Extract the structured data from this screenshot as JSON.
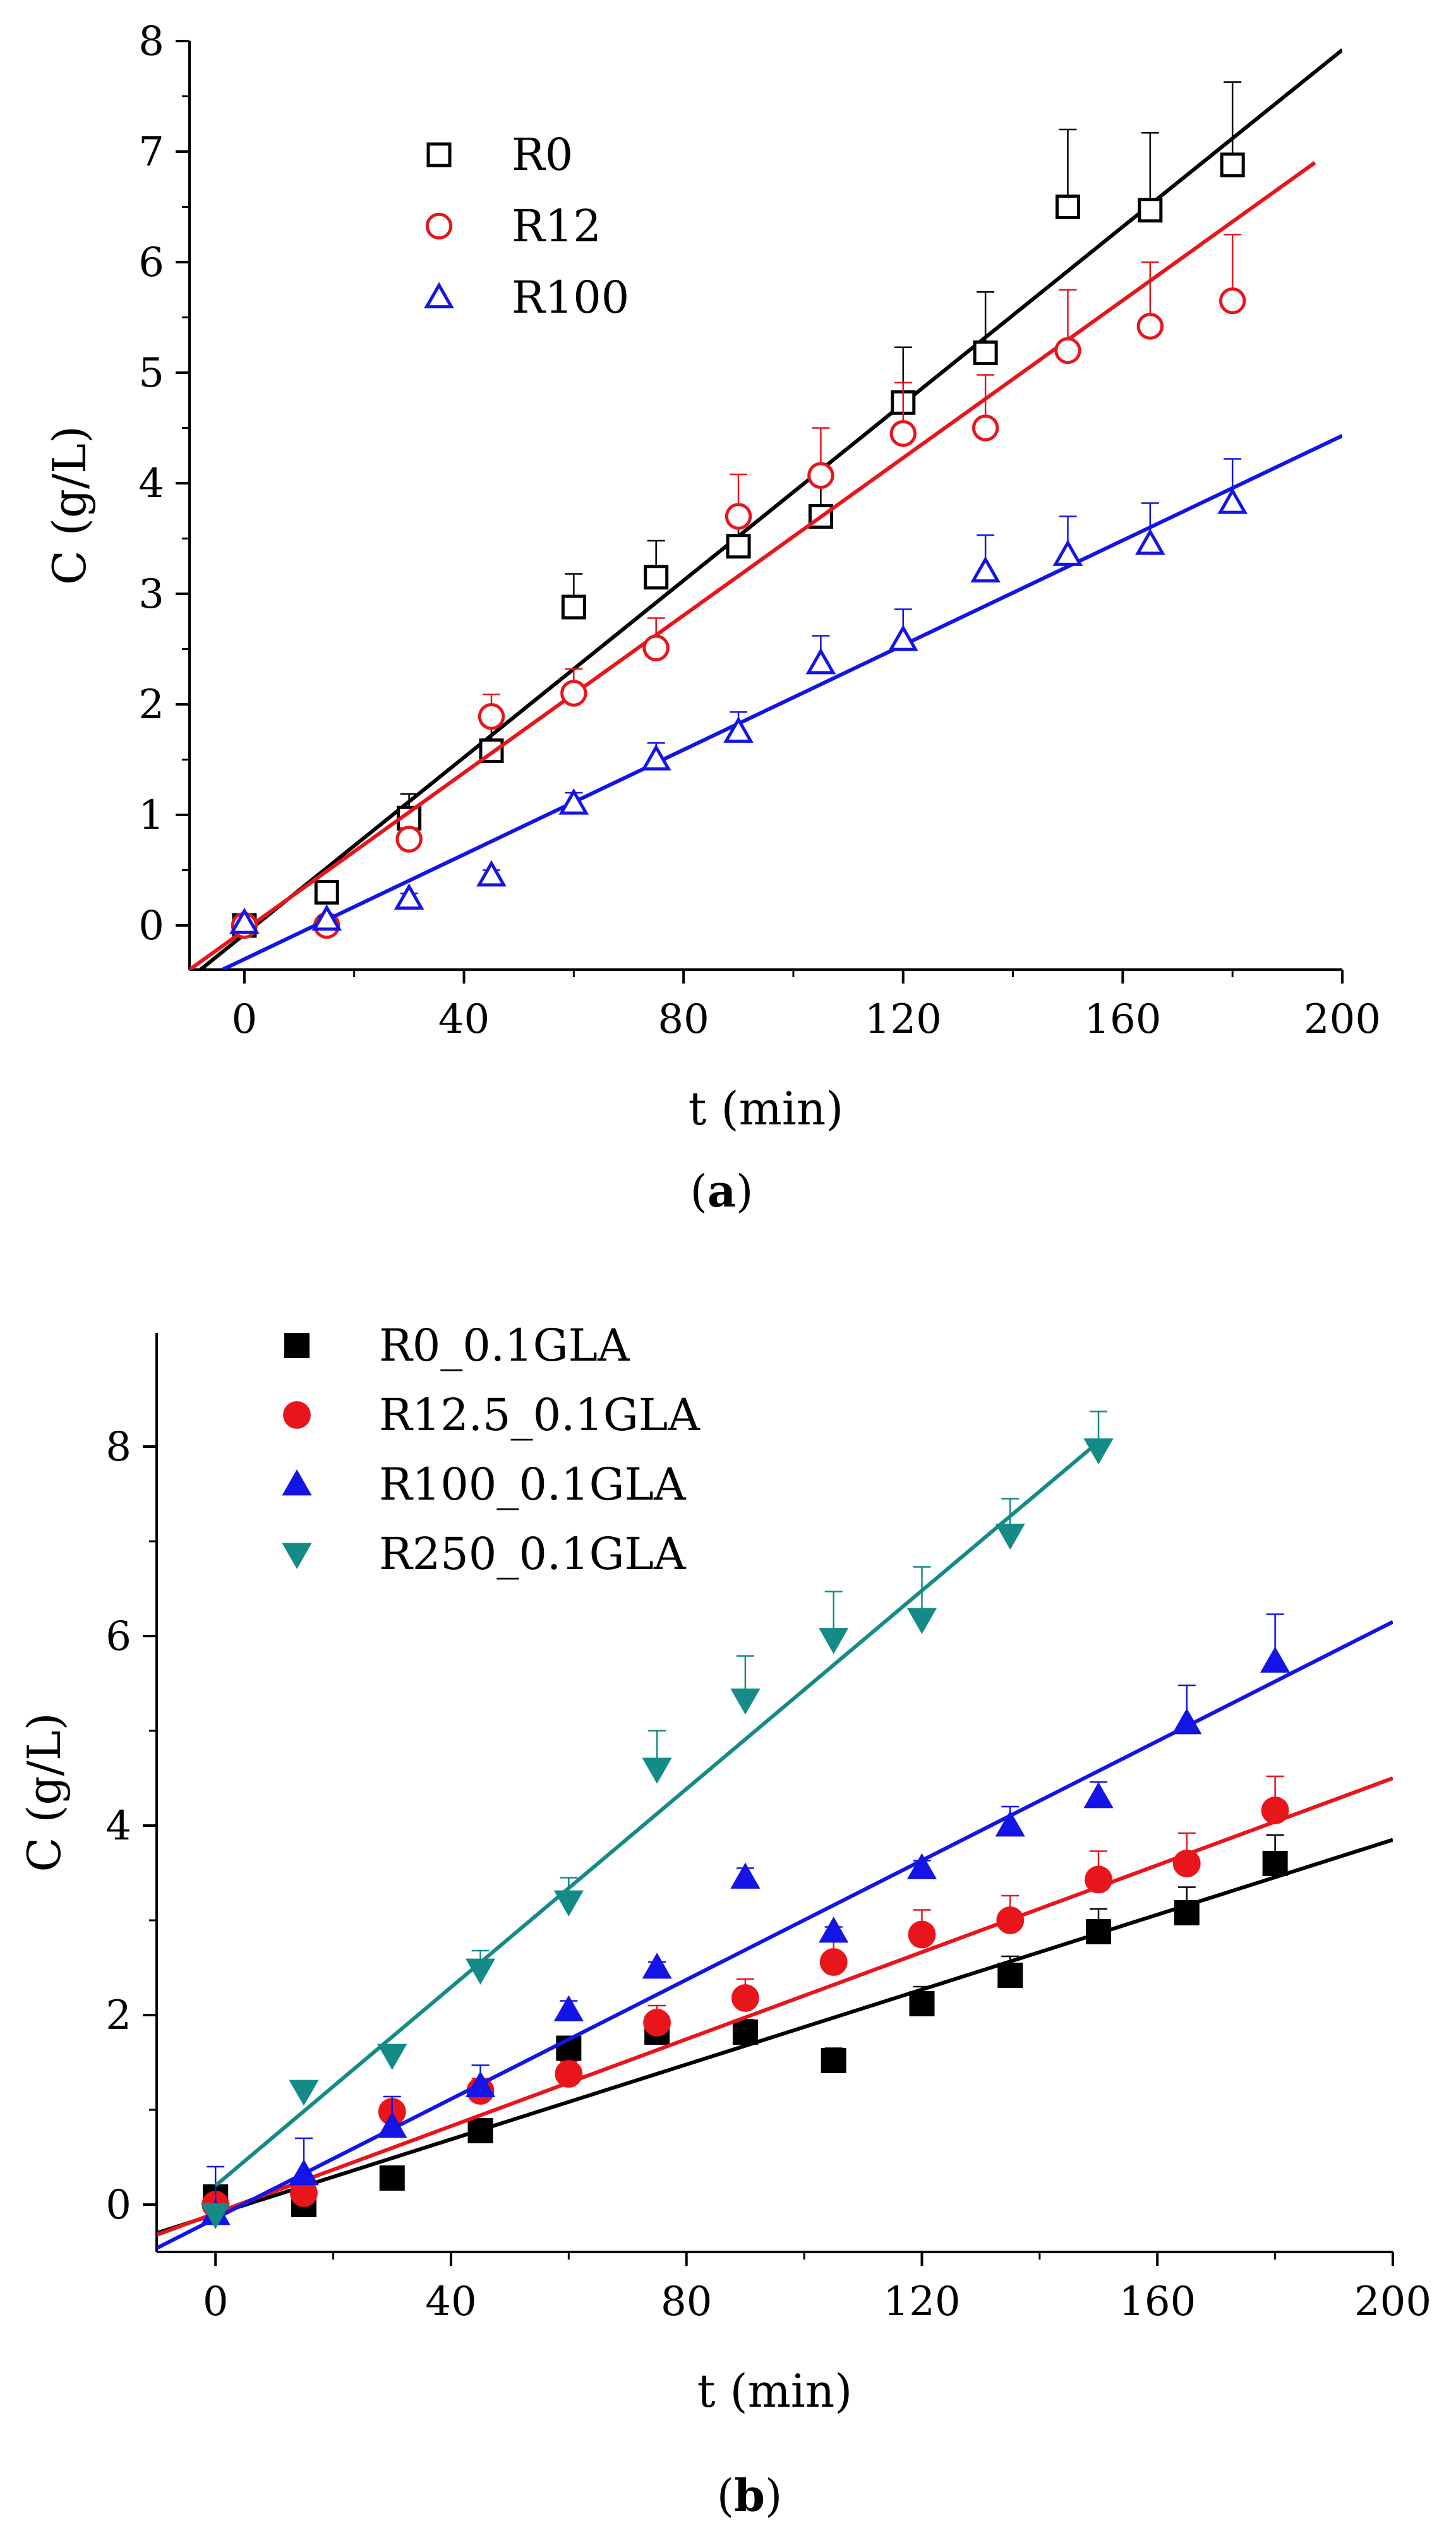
{
  "chart_data": [
    {
      "type": "scatter",
      "panel_label": "a",
      "xlabel": "t (min)",
      "ylabel": "C (g/L)",
      "xlim": [
        -10,
        200
      ],
      "ylim": [
        -0.4,
        8
      ],
      "x_ticks": [
        0,
        40,
        80,
        120,
        160,
        200
      ],
      "y_ticks": [
        0,
        1,
        2,
        3,
        4,
        5,
        6,
        7,
        8
      ],
      "x_tick_labels": [
        "0",
        "40",
        "80",
        "120",
        "160",
        "200"
      ],
      "y_tick_labels": [
        "0",
        "1",
        "2",
        "3",
        "4",
        "5",
        "6",
        "7",
        "8"
      ],
      "legend_position": "top-left",
      "series": [
        {
          "name": "R0",
          "marker": "square-open",
          "color": "#000000",
          "x": [
            0,
            15,
            30,
            45,
            60,
            75,
            90,
            105,
            120,
            135,
            150,
            165,
            180
          ],
          "y": [
            0.0,
            0.3,
            0.97,
            1.58,
            2.88,
            3.15,
            3.43,
            3.7,
            4.73,
            5.18,
            6.5,
            6.47,
            6.88
          ],
          "err": [
            0.0,
            0.05,
            0.22,
            0.3,
            0.3,
            0.33,
            0.35,
            0.4,
            0.5,
            0.55,
            0.7,
            0.7,
            0.75
          ],
          "fit": {
            "x": [
              -8,
              200
            ],
            "y": [
              -0.4,
              7.92
            ]
          }
        },
        {
          "name": "R12",
          "marker": "circle-open",
          "color": "#e8151b",
          "x": [
            0,
            15,
            30,
            45,
            60,
            75,
            90,
            105,
            120,
            135,
            150,
            165,
            180
          ],
          "y": [
            0.0,
            0.0,
            0.78,
            1.89,
            2.1,
            2.51,
            3.7,
            4.07,
            4.45,
            4.5,
            5.2,
            5.42,
            5.65
          ],
          "err": [
            0.0,
            0.0,
            0.1,
            0.2,
            0.22,
            0.27,
            0.38,
            0.43,
            0.46,
            0.48,
            0.55,
            0.58,
            0.6
          ],
          "fit": {
            "x": [
              -10,
              195
            ],
            "y": [
              -0.4,
              6.9
            ]
          }
        },
        {
          "name": "R100",
          "marker": "triangle-open",
          "color": "#1414e6",
          "x": [
            0,
            15,
            30,
            45,
            60,
            75,
            90,
            105,
            120,
            135,
            150,
            165,
            180
          ],
          "y": [
            0.02,
            0.05,
            0.24,
            0.45,
            1.1,
            1.5,
            1.75,
            2.37,
            2.58,
            3.2,
            3.35,
            3.45,
            3.82
          ],
          "err": [
            0.0,
            0.03,
            0.05,
            0.05,
            0.1,
            0.15,
            0.18,
            0.25,
            0.28,
            0.33,
            0.35,
            0.37,
            0.4
          ],
          "fit": {
            "x": [
              -4,
              200
            ],
            "y": [
              -0.4,
              4.43
            ]
          }
        }
      ]
    },
    {
      "type": "scatter",
      "panel_label": "b",
      "xlabel": "t (min)",
      "ylabel": "C (g/L)",
      "xlim": [
        -10,
        200
      ],
      "ylim": [
        -0.5,
        9.2
      ],
      "x_ticks": [
        0,
        40,
        80,
        120,
        160,
        200
      ],
      "y_ticks": [
        0,
        2,
        4,
        6,
        8
      ],
      "x_tick_labels": [
        "0",
        "40",
        "80",
        "120",
        "160",
        "200"
      ],
      "y_tick_labels": [
        "0",
        "2",
        "4",
        "6",
        "8"
      ],
      "legend_position": "top-left",
      "series": [
        {
          "name": "R0_0.1GLA",
          "marker": "square-filled",
          "color": "#000000",
          "x": [
            0,
            15,
            30,
            45,
            60,
            75,
            90,
            105,
            120,
            135,
            150,
            165,
            180
          ],
          "y": [
            0.08,
            0.0,
            0.28,
            0.78,
            1.65,
            1.82,
            1.82,
            1.52,
            2.12,
            2.42,
            2.88,
            3.08,
            3.6
          ],
          "err": [
            0.0,
            0.0,
            0.0,
            0.05,
            0.1,
            0.1,
            0.13,
            0.13,
            0.18,
            0.2,
            0.24,
            0.27,
            0.3
          ],
          "fit": {
            "x": [
              -10,
              200
            ],
            "y": [
              -0.3,
              3.85
            ]
          }
        },
        {
          "name": "R12.5_0.1GLA",
          "marker": "circle-filled",
          "color": "#e8151b",
          "x": [
            0,
            15,
            30,
            45,
            60,
            75,
            90,
            105,
            120,
            135,
            150,
            165,
            180
          ],
          "y": [
            0.0,
            0.12,
            0.98,
            1.2,
            1.38,
            1.92,
            2.18,
            2.56,
            2.85,
            3.0,
            3.43,
            3.6,
            4.16
          ],
          "err": [
            0.0,
            0.0,
            0.1,
            0.13,
            0.13,
            0.18,
            0.2,
            0.24,
            0.26,
            0.26,
            0.3,
            0.32,
            0.36
          ],
          "fit": {
            "x": [
              -10,
              200
            ],
            "y": [
              -0.32,
              4.5
            ]
          }
        },
        {
          "name": "R100_0.1GLA",
          "marker": "triangle-up-filled",
          "color": "#1414e6",
          "x": [
            0,
            15,
            30,
            45,
            60,
            75,
            90,
            105,
            120,
            135,
            150,
            165,
            180
          ],
          "y": [
            -0.1,
            0.32,
            0.82,
            1.25,
            2.05,
            2.5,
            3.45,
            2.88,
            3.55,
            4.0,
            4.3,
            5.08,
            5.73
          ],
          "err": [
            0.5,
            0.38,
            0.32,
            0.22,
            0.1,
            0.06,
            0.1,
            0.05,
            0.08,
            0.2,
            0.16,
            0.4,
            0.5
          ],
          "fit": {
            "x": [
              -10,
              200
            ],
            "y": [
              -0.46,
              6.15
            ]
          }
        },
        {
          "name": "R250_0.1GLA",
          "marker": "triangle-down-filled",
          "color": "#148b87",
          "x": [
            0,
            15,
            30,
            45,
            60,
            75,
            90,
            105,
            120,
            135,
            150
          ],
          "y": [
            -0.1,
            1.2,
            1.58,
            2.48,
            3.2,
            4.6,
            5.33,
            5.97,
            6.18,
            7.07,
            7.97
          ],
          "err": [
            0.0,
            0.1,
            0.1,
            0.2,
            0.25,
            0.4,
            0.46,
            0.5,
            0.55,
            0.38,
            0.4
          ],
          "fit": {
            "x": [
              0,
              150
            ],
            "y": [
              0.2,
              8.05
            ]
          }
        }
      ]
    }
  ]
}
